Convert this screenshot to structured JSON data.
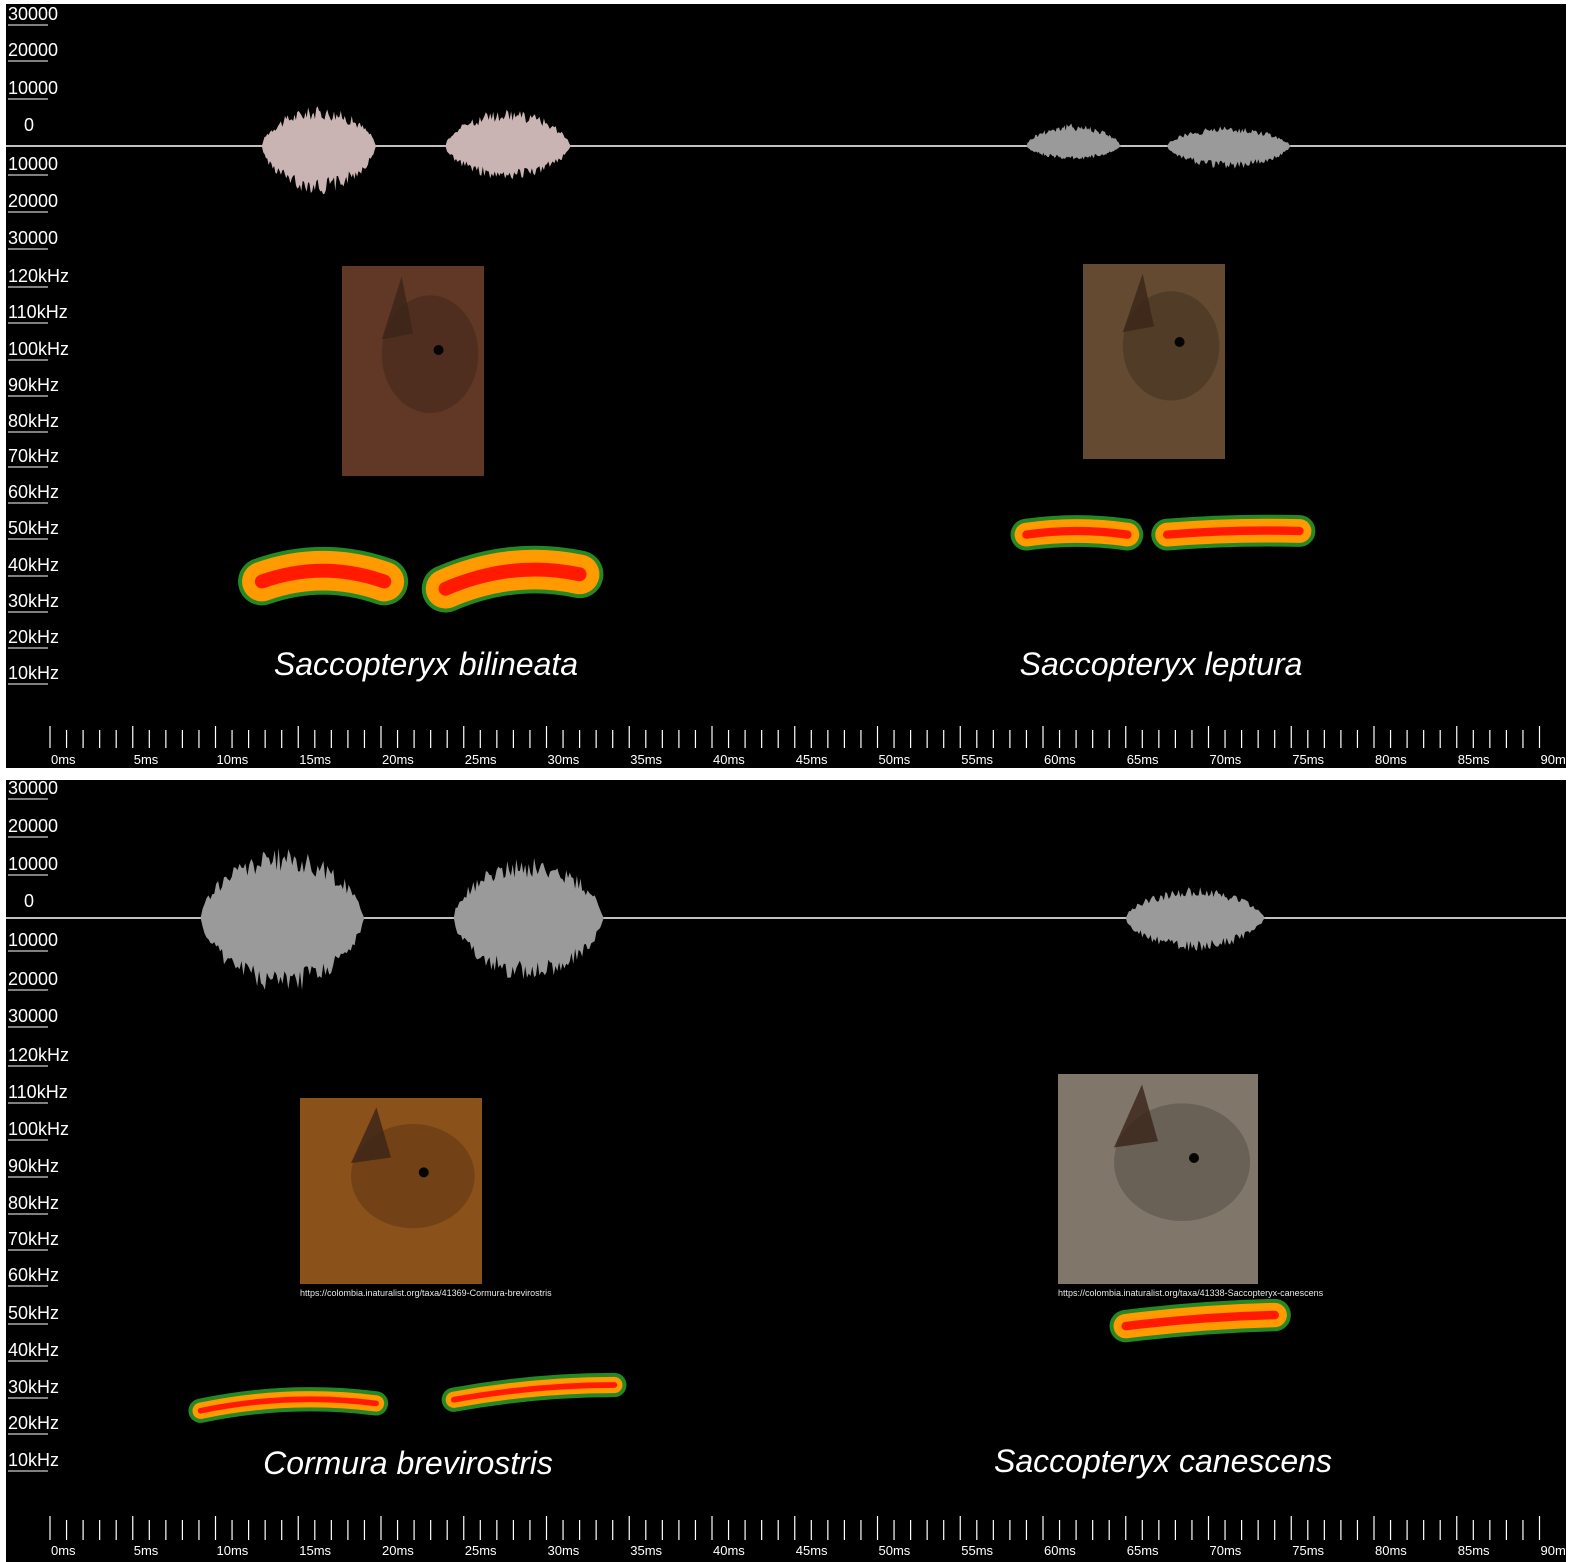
{
  "colors": {
    "background": "#000000",
    "axis": "#ffffff",
    "waveform_top_left": "#c9b3b3",
    "waveform_gray": "#9a9a9a",
    "spectro_low": "#2aa02a",
    "spectro_mid": "#ff9a00",
    "spectro_high": "#ff1a00"
  },
  "chart_data": [
    {
      "type": "area",
      "panel": "top",
      "amplitude_axis": {
        "ticks": [
          "30000",
          "20000",
          "10000",
          "0",
          "10000",
          "20000",
          "30000"
        ],
        "ylim": [
          -30000,
          30000
        ]
      },
      "frequency_axis": {
        "ticks": [
          "120kHz",
          "110kHz",
          "100kHz",
          "90kHz",
          "80kHz",
          "70kHz",
          "60kHz",
          "50kHz",
          "40kHz",
          "30kHz",
          "20kHz",
          "10kHz"
        ]
      },
      "time_axis": {
        "ticks": [
          "0ms",
          "5ms",
          "10ms",
          "15ms",
          "20ms",
          "25ms",
          "30ms",
          "35ms",
          "40ms",
          "45ms",
          "50ms",
          "55ms",
          "60ms",
          "65ms",
          "70ms",
          "75ms",
          "80ms",
          "85ms",
          "90ms"
        ],
        "xlim": [
          0,
          90
        ]
      },
      "species": [
        {
          "name": "Saccopteryx bilineata",
          "waveform_color": "#c9b3b3",
          "pulses": [
            {
              "start_ms": 12.8,
              "end_ms": 20.2,
              "amplitude_pos": 14000,
              "amplitude_neg": 17000,
              "freq_start_khz": 37,
              "freq_peak_khz": 40,
              "freq_end_khz": 37,
              "band_khz": 5
            },
            {
              "start_ms": 23.9,
              "end_ms": 32.0,
              "amplitude_pos": 13000,
              "amplitude_neg": 12000,
              "freq_start_khz": 35,
              "freq_peak_khz": 40,
              "freq_end_khz": 39,
              "band_khz": 5
            }
          ]
        },
        {
          "name": "Saccopteryx leptura",
          "waveform_color": "#9a9a9a",
          "pulses": [
            {
              "start_ms": 59.0,
              "end_ms": 65.1,
              "amplitude_pos": 8000,
              "amplitude_neg": 5000,
              "freq_start_khz": 50,
              "freq_peak_khz": 51,
              "freq_end_khz": 50,
              "band_khz": 3
            },
            {
              "start_ms": 67.5,
              "end_ms": 75.5,
              "amplitude_pos": 7000,
              "amplitude_neg": 8000,
              "freq_start_khz": 50,
              "freq_peak_khz": 51,
              "freq_end_khz": 51,
              "band_khz": 3
            }
          ]
        }
      ]
    },
    {
      "type": "area",
      "panel": "bottom",
      "amplitude_axis": {
        "ticks": [
          "30000",
          "20000",
          "10000",
          "0",
          "10000",
          "20000",
          "30000"
        ],
        "ylim": [
          -30000,
          30000
        ]
      },
      "frequency_axis": {
        "ticks": [
          "120kHz",
          "110kHz",
          "100kHz",
          "90kHz",
          "80kHz",
          "70kHz",
          "60kHz",
          "50kHz",
          "40kHz",
          "30kHz",
          "20kHz",
          "10kHz"
        ]
      },
      "time_axis": {
        "ticks": [
          "0ms",
          "5ms",
          "10ms",
          "15ms",
          "20ms",
          "25ms",
          "30ms",
          "35ms",
          "40ms",
          "45ms",
          "50ms",
          "55ms",
          "60ms",
          "65ms",
          "70ms",
          "75ms",
          "80ms",
          "85ms",
          "90ms"
        ],
        "xlim": [
          0,
          90
        ]
      },
      "species": [
        {
          "name": "Cormura brevirostris",
          "photo_credit": "https://colombia.inaturalist.org/taxa/41369-Cormura-brevirostris",
          "waveform_color": "#9a9a9a",
          "pulses": [
            {
              "start_ms": 9.1,
              "end_ms": 19.7,
              "amplitude_pos": 25000,
              "amplitude_neg": 27000,
              "freq_start_khz": 25,
              "freq_peak_khz": 28,
              "freq_end_khz": 27,
              "band_khz": 2
            },
            {
              "start_ms": 24.4,
              "end_ms": 34.1,
              "amplitude_pos": 22000,
              "amplitude_neg": 23000,
              "freq_start_khz": 28,
              "freq_peak_khz": 31,
              "freq_end_khz": 32,
              "band_khz": 2
            }
          ]
        },
        {
          "name": "Saccopteryx canescens",
          "photo_credit": "https://colombia.inaturalist.org/taxa/41338-Saccopteryx-canescens",
          "waveform_color": "#9a9a9a",
          "pulses": [
            {
              "start_ms": 65.0,
              "end_ms": 74.0,
              "amplitude_pos": 11000,
              "amplitude_neg": 12000,
              "freq_start_khz": 48,
              "freq_peak_khz": 50,
              "freq_end_khz": 51,
              "band_khz": 3
            }
          ]
        }
      ]
    }
  ]
}
